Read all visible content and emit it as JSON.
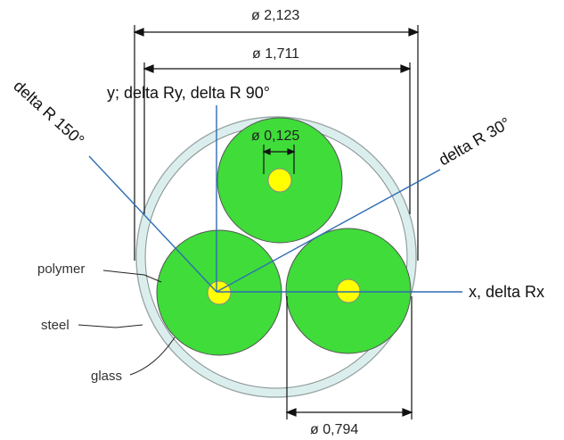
{
  "dimensions": {
    "outer_diameter": "ø 2,123",
    "inner_diameter": "ø 1,711",
    "core_diameter": "ø 0,125",
    "fiber_diameter": "ø 0,794"
  },
  "parts": {
    "polymer": "polymer",
    "steel": "steel",
    "glass": "glass"
  },
  "axes": {
    "y": "y; delta Ry, delta R 90°",
    "x": "x, delta Rx",
    "r30": "delta R 30°",
    "r150": "delta R 150°"
  },
  "colors": {
    "fiber": "#3fdc3a",
    "core": "#ffff00",
    "tube": "#dbeeee",
    "axis_line": "#2e6db4"
  }
}
